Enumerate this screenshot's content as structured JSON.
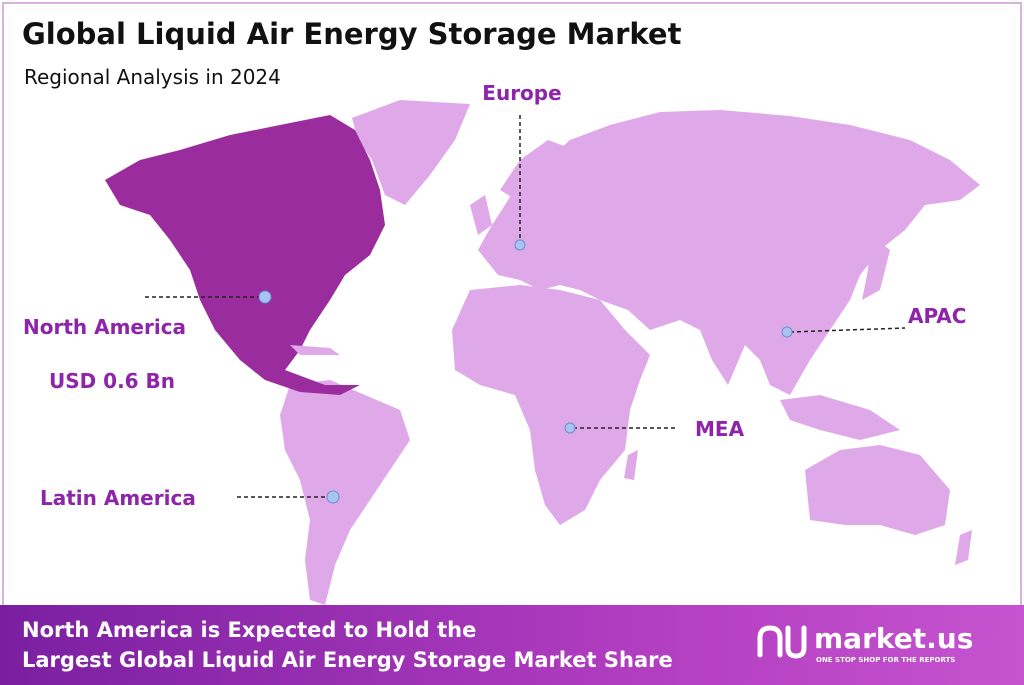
{
  "header": {
    "title": "Global Liquid Air Energy Storage Market",
    "subtitle": "Regional Analysis in 2024"
  },
  "regions": [
    {
      "name": "North America",
      "value": "USD 0.6 Bn"
    },
    {
      "name": "Europe"
    },
    {
      "name": "APAC"
    },
    {
      "name": "MEA"
    },
    {
      "name": "Latin America"
    }
  ],
  "footer": {
    "lines": [
      "North America is Expected to Hold the",
      "Largest Global Liquid Air Energy Storage Market Share"
    ],
    "brand": "market.us",
    "tagline": "ONE STOP SHOP FOR THE REPORTS"
  }
}
